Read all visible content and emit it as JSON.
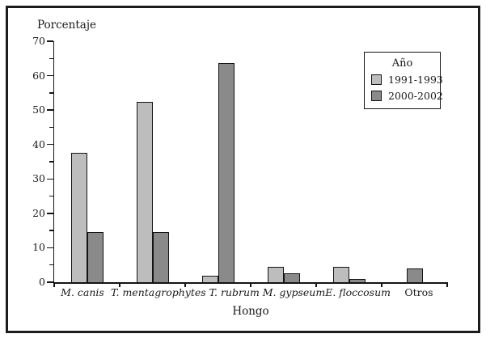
{
  "legend": {
    "title": "Año"
  },
  "chart_data": {
    "type": "bar",
    "title": "",
    "xlabel": "Hongo",
    "ylabel": "Porcentaje",
    "categories": [
      "M. canis",
      "T. mentagrophytes",
      "T. rubrum",
      "M. gypseum",
      "E. floccosum",
      "Otros"
    ],
    "categories_italic": [
      true,
      true,
      true,
      true,
      true,
      false
    ],
    "series": [
      {
        "name": "1991-1993",
        "color": "#bdbdbd",
        "values": [
          37.6,
          52.5,
          1.8,
          4.5,
          4.4,
          0
        ]
      },
      {
        "name": "2000-2002",
        "color": "#8a8a8a",
        "values": [
          14.6,
          14.6,
          63.7,
          2.6,
          0.9,
          4.1
        ]
      }
    ],
    "ylim": [
      0,
      70
    ],
    "ytick_step_major": 10,
    "ytick_step_minor": 5,
    "grid": false,
    "legend_position": "top-right",
    "bar_outline_color": "#141414",
    "background_color": "#ffffff"
  }
}
